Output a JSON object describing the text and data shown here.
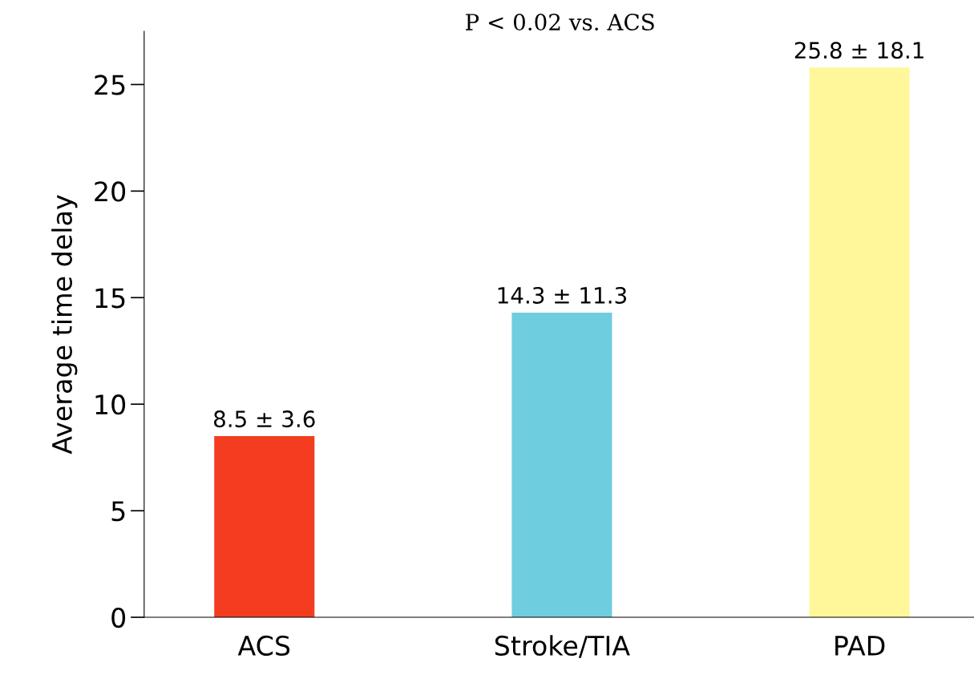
{
  "chart_data": {
    "type": "bar",
    "ylabel": "Average time delay",
    "categories": [
      "ACS",
      "Stroke/TIA",
      "PAD"
    ],
    "values": [
      8.5,
      14.3,
      25.8
    ],
    "colors": [
      "#f43c20",
      "#6fcde0",
      "#fff79a"
    ],
    "value_labels": [
      "8.5 ± 3.6",
      "14.3 ± 11.3",
      "25.8 ± 18.1"
    ],
    "annotations": [
      "P < 0.02 vs. ACS"
    ],
    "ylim": [
      0,
      27.5
    ],
    "yticks": [
      0,
      5,
      10,
      15,
      20,
      25
    ],
    "grid": false,
    "legend": false
  }
}
